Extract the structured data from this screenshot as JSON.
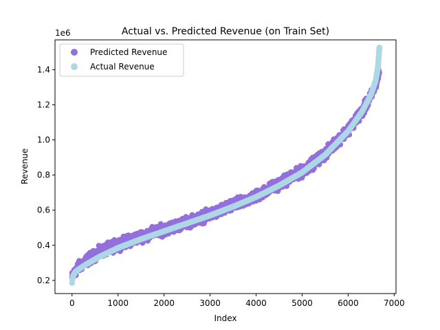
{
  "chart_data": {
    "type": "scatter",
    "title": "Actual vs. Predicted Revenue (on Train Set)",
    "xlabel": "Index",
    "ylabel": "Revenue",
    "y_offset_label": "1e6",
    "xlim": [
      -370,
      7040
    ],
    "ylim": [
      125000,
      1570000
    ],
    "x_ticks": [
      0,
      1000,
      2000,
      3000,
      4000,
      5000,
      6000,
      7000
    ],
    "x_tick_labels": [
      "0",
      "1000",
      "2000",
      "3000",
      "4000",
      "5000",
      "6000",
      "7000"
    ],
    "y_ticks": [
      200000,
      400000,
      600000,
      800000,
      1000000,
      1200000,
      1400000
    ],
    "y_tick_labels": [
      "0.2",
      "0.4",
      "0.6",
      "0.8",
      "1.0",
      "1.2",
      "1.4"
    ],
    "grid": false,
    "legend_position": "upper-left",
    "n_points": 6680,
    "series": [
      {
        "name": "Predicted Revenue",
        "color": "#9370DB",
        "x": [
          0,
          100,
          300,
          600,
          1000,
          1500,
          2000,
          2500,
          3000,
          3500,
          4000,
          4500,
          5000,
          5500,
          6000,
          6300,
          6500,
          6600,
          6680
        ],
        "values": [
          215000,
          265000,
          310000,
          360000,
          405000,
          450000,
          490000,
          530000,
          575000,
          625000,
          680000,
          750000,
          820000,
          920000,
          1060000,
          1160000,
          1250000,
          1320000,
          1390000
        ],
        "spread": 30000
      },
      {
        "name": "Actual Revenue",
        "color": "#ADD8E6",
        "x": [
          0,
          10,
          50,
          100,
          300,
          600,
          1000,
          1500,
          2000,
          2500,
          3000,
          3500,
          4000,
          4500,
          5000,
          5500,
          6000,
          6300,
          6500,
          6600,
          6650,
          6680
        ],
        "values": [
          185000,
          215000,
          240000,
          255000,
          290000,
          335000,
          385000,
          435000,
          480000,
          525000,
          570000,
          620000,
          675000,
          740000,
          815000,
          915000,
          1050000,
          1160000,
          1260000,
          1340000,
          1420000,
          1530000
        ]
      }
    ]
  }
}
